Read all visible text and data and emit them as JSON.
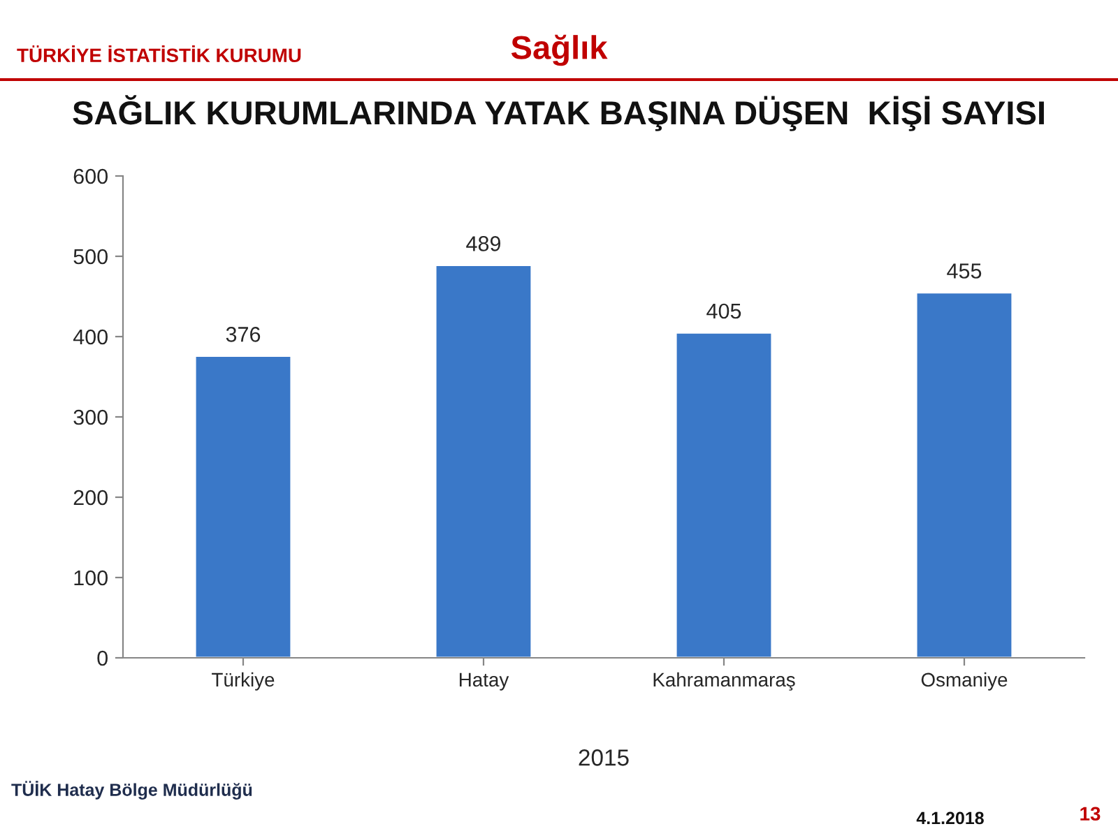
{
  "chart_data": {
    "type": "bar",
    "title": "SAĞLIK KURUMLARINDA YATAK BAŞINA DÜŞEN  KİŞİ SAYISI",
    "xlabel": "2015",
    "categories": [
      "Türkiye",
      "Hatay",
      "Kahramanmaraş",
      "Osmaniye"
    ],
    "values": [
      376,
      489,
      405,
      455
    ],
    "color": "#3a78c8",
    "ylim": [
      0,
      600
    ],
    "yticks": [
      0,
      100,
      200,
      300,
      400,
      500,
      600
    ],
    "grid": false,
    "data_labels": true,
    "annotations": [
      "TÜRKİYE İSTATİSTİK KURUMU",
      "Sağlık",
      "TÜİK Hatay Bölge Müdürlüğü",
      "4.1.2018",
      "13"
    ]
  }
}
